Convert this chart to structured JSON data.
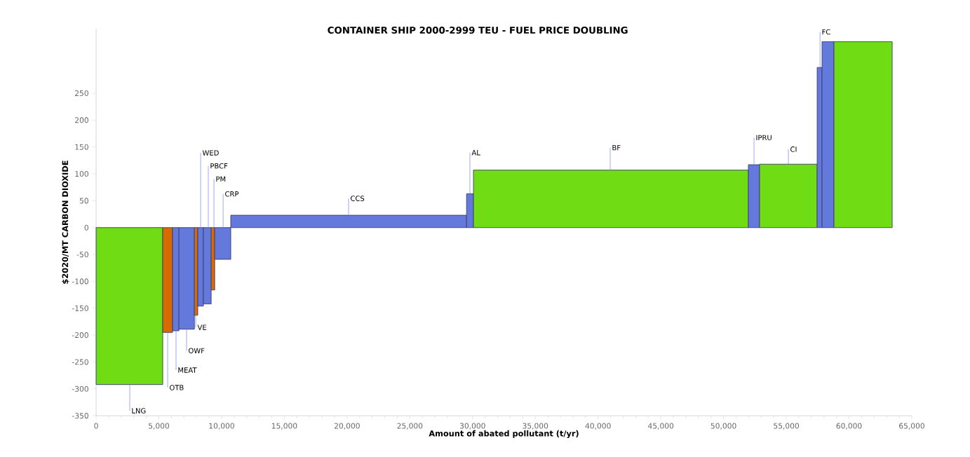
{
  "chart_data": {
    "type": "histogram",
    "title": "CONTAINER SHIP 2000-2999 TEU - FUEL PRICE DOUBLING",
    "xlabel": "Amount of abated pollutant (t/yr)",
    "ylabel": "$2020/MT CARBON DIOXIDE",
    "bins": [
      0,
      5310,
      6090,
      6600,
      7830,
      8100,
      8550,
      9170,
      9450,
      10730,
      29520,
      30070,
      51980,
      52870,
      57460,
      57850,
      58800,
      63440
    ],
    "values": [
      -292,
      -195,
      -192,
      -189,
      -163,
      -146,
      -142,
      -116,
      -59,
      23,
      63,
      107,
      117,
      118,
      298,
      346,
      346
    ],
    "colors": [
      "#70dc14",
      "#d96a00",
      "#6379dc",
      "#6379dc",
      "#d96a00",
      "#6379dc",
      "#6379dc",
      "#d96a00",
      "#6379dc",
      "#6379dc",
      "#6379dc",
      "#70dc14",
      "#6379dc",
      "#70dc14",
      "#6379dc",
      "#6379dc",
      "#70dc14"
    ],
    "xlim": [
      0,
      65000
    ],
    "ylim": [
      -350,
      370
    ],
    "xticks": [
      {
        "value": 0,
        "label": "0"
      },
      {
        "value": 5000,
        "label": "5,000"
      },
      {
        "value": 10000,
        "label": "10,000"
      },
      {
        "value": 15000,
        "label": "15,000"
      },
      {
        "value": 20000,
        "label": "20,000"
      },
      {
        "value": 25000,
        "label": "25,000"
      },
      {
        "value": 30000,
        "label": "30,000"
      },
      {
        "value": 35000,
        "label": "35,000"
      },
      {
        "value": 40000,
        "label": "40,000"
      },
      {
        "value": 45000,
        "label": "45,000"
      },
      {
        "value": 50000,
        "label": "50,000"
      },
      {
        "value": 55000,
        "label": "55,000"
      },
      {
        "value": 60000,
        "label": "60,000"
      },
      {
        "value": 65000,
        "label": "65,000"
      }
    ],
    "yticks": [
      -350,
      -300,
      -250,
      -200,
      -150,
      -100,
      -50,
      0,
      50,
      100,
      150,
      200,
      250
    ],
    "grid": false,
    "annotations": [
      {
        "text": "LNG",
        "x": 2680,
        "y": -292
      },
      {
        "text": "OTB",
        "x": 5700,
        "y": -195
      },
      {
        "text": "MEAT",
        "x": 6370,
        "y": -192
      },
      {
        "text": "OWF",
        "x": 7210,
        "y": -189
      },
      {
        "text": "VE",
        "x": 7940,
        "y": -163
      },
      {
        "text": "WED",
        "x": 8330,
        "y": 0
      },
      {
        "text": "PBCF",
        "x": 8940,
        "y": 0
      },
      {
        "text": "PM",
        "x": 9390,
        "y": 0
      },
      {
        "text": "CRP",
        "x": 10120,
        "y": 0
      },
      {
        "text": "CCS",
        "x": 20120,
        "y": 23
      },
      {
        "text": "AL",
        "x": 29790,
        "y": 63
      },
      {
        "text": "BF",
        "x": 40970,
        "y": 107
      },
      {
        "text": "IPRU",
        "x": 52430,
        "y": 117
      },
      {
        "text": "CI",
        "x": 55170,
        "y": 118
      },
      {
        "text": "FC",
        "x": 57690,
        "y": 298
      }
    ]
  }
}
